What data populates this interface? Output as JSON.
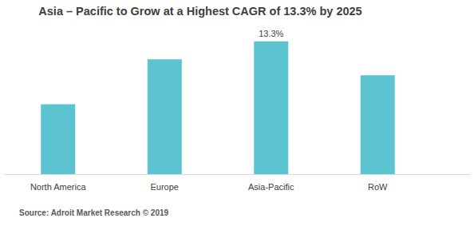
{
  "chart_data": {
    "type": "bar",
    "title": "Asia – Pacific to Grow at a Highest CAGR of 13.3% by 2025",
    "source": "Source: Adroit Market Research © 2019",
    "categories": [
      "North America",
      "Europe",
      "Asia-Pacific",
      "RoW"
    ],
    "values": [
      7.0,
      11.5,
      13.3,
      9.9
    ],
    "value_labels": [
      null,
      null,
      "13.3%",
      null
    ],
    "color": "#5bc4d0",
    "ylim": [
      0,
      14
    ],
    "grid": false,
    "data_labels": true,
    "tick_labels": "x"
  }
}
